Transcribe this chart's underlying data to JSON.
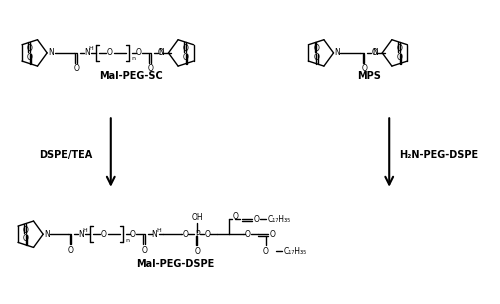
{
  "background_color": "#ffffff",
  "fig_width": 5.0,
  "fig_height": 3.04,
  "dpi": 100,
  "label_mal_peg_sc": "Mal-PEG-SC",
  "label_mps": "MPS",
  "label_mal_peg_dspe": "Mal-PEG-DSPE",
  "label_dspe_tea": "DSPE/TEA",
  "label_h2n": "H₂N-PEG-DSPE"
}
